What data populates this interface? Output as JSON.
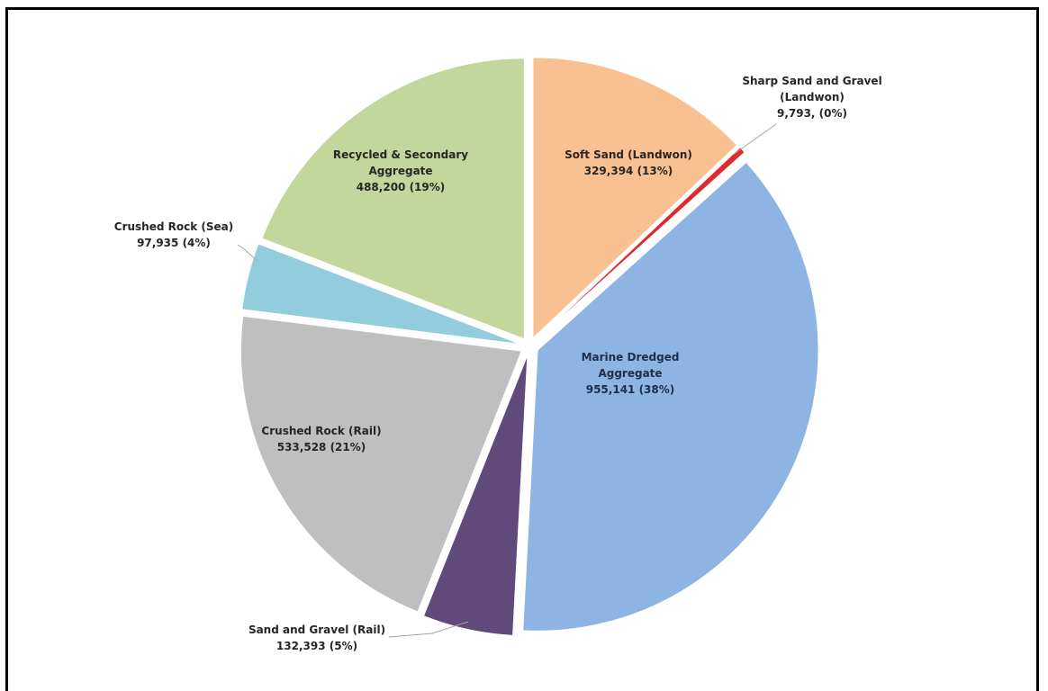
{
  "chart_data": {
    "type": "pie",
    "title": "",
    "start_angle_deg": 0,
    "direction": "clockwise",
    "slices": [
      {
        "name": "Soft Sand (Landwon)",
        "value": 329394,
        "value_label": "329,394",
        "percent_label": "(13%)",
        "color": "#f9c091",
        "exploded": true,
        "label_lines": [
          "Soft Sand (Landwon)",
          "329,394 (13%)"
        ],
        "label_inside": true
      },
      {
        "name": "Sharp Sand and Gravel (Landwon)",
        "value": 9793,
        "value_label": "9,793,",
        "percent_label": "(0%)",
        "color": "#e0292d",
        "exploded": true,
        "label_lines": [
          "Sharp Sand and Gravel",
          "(Landwon)",
          "9,793, (0%)"
        ],
        "label_inside": false
      },
      {
        "name": "Marine Dredged Aggregate",
        "value": 955141,
        "value_label": "955,141",
        "percent_label": "(38%)",
        "color": "#8eb4e3",
        "exploded": true,
        "label_lines": [
          "Marine Dredged",
          "Aggregate",
          "955,141 (38%)"
        ],
        "label_inside": true
      },
      {
        "name": "Sand and Gravel (Rail)",
        "value": 132393,
        "value_label": "132,393",
        "percent_label": "(5%)",
        "color": "#604a7b",
        "exploded": true,
        "label_lines": [
          "Sand and Gravel (Rail)",
          "132,393 (5%)"
        ],
        "label_inside": false
      },
      {
        "name": "Crushed Rock (Rail)",
        "value": 533528,
        "value_label": "533,528",
        "percent_label": "(21%)",
        "color": "#bfbfbf",
        "exploded": true,
        "label_lines": [
          "Crushed Rock (Rail)",
          "533,528 (21%)"
        ],
        "label_inside": true
      },
      {
        "name": "Crushed Rock (Sea)",
        "value": 97935,
        "value_label": "97,935",
        "percent_label": "(4%)",
        "color": "#93cddd",
        "exploded": true,
        "label_lines": [
          "Crushed Rock (Sea)",
          "97,935 (4%)"
        ],
        "label_inside": false
      },
      {
        "name": "Recycled & Secondary Aggregate",
        "value": 488200,
        "value_label": "488,200",
        "percent_label": "(19%)",
        "color": "#c3d69b",
        "exploded": true,
        "label_lines": [
          "Recycled & Secondary",
          "Aggregate",
          "488,200 (19%)"
        ],
        "label_inside": true
      }
    ]
  }
}
